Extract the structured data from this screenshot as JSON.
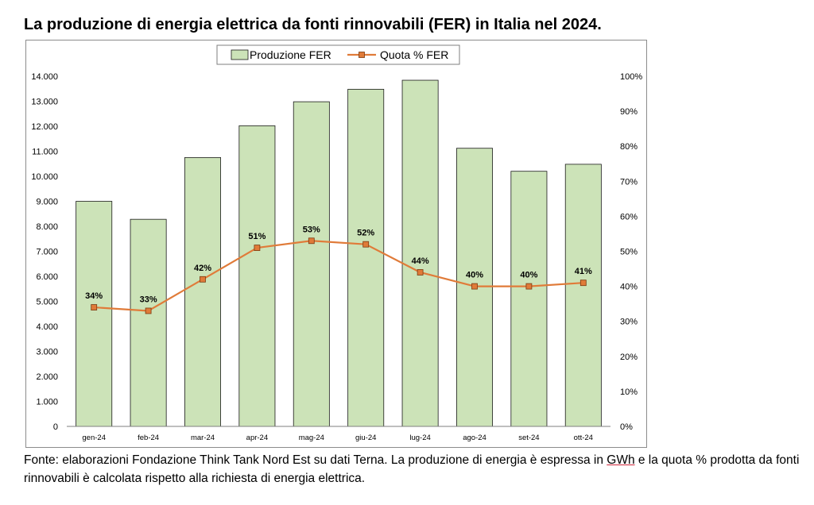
{
  "title": "La produzione di energia elettrica da fonti rinnovabili (FER) in Italia nel 2024.",
  "note": {
    "before": "Fonte: elaborazioni Fondazione Think Tank Nord Est su dati Terna. La produzione di energia è espressa in ",
    "underlined": "GWh",
    "after": " e la quota % prodotta da fonti rinnovabili è calcolata rispetto alla richiesta di energia elettrica."
  },
  "colors": {
    "bar_fill": "#cce3b8",
    "bar_stroke": "#1a1a1a",
    "line": "#e07b39",
    "marker": "#e07b39",
    "marker_stroke": "#7a3a10"
  },
  "chart_data": {
    "type": "bar",
    "categories": [
      "gen-24",
      "feb-24",
      "mar-24",
      "apr-24",
      "mag-24",
      "giu-24",
      "lug-24",
      "ago-24",
      "set-24",
      "ott-24"
    ],
    "series": [
      {
        "name": "Produzione FER",
        "type": "bar",
        "axis": "left",
        "values": [
          9000,
          8280,
          10750,
          12020,
          12980,
          13480,
          13840,
          11120,
          10200,
          10480
        ]
      },
      {
        "name": "Quota % FER",
        "type": "line",
        "axis": "right",
        "values": [
          34,
          33,
          42,
          51,
          53,
          52,
          44,
          40,
          40,
          41
        ],
        "data_labels": [
          "34%",
          "33%",
          "42%",
          "51%",
          "53%",
          "52%",
          "44%",
          "40%",
          "40%",
          "41%"
        ]
      }
    ],
    "ylim_left": [
      0,
      14000
    ],
    "ylim_right": [
      0,
      100
    ],
    "yticks_left": [
      "0",
      "1.000",
      "2.000",
      "3.000",
      "4.000",
      "5.000",
      "6.000",
      "7.000",
      "8.000",
      "9.000",
      "10.000",
      "11.000",
      "12.000",
      "13.000",
      "14.000"
    ],
    "yticks_right": [
      "0%",
      "10%",
      "20%",
      "30%",
      "40%",
      "50%",
      "60%",
      "70%",
      "80%",
      "90%",
      "100%"
    ],
    "grid": false,
    "legend": "top-center"
  }
}
